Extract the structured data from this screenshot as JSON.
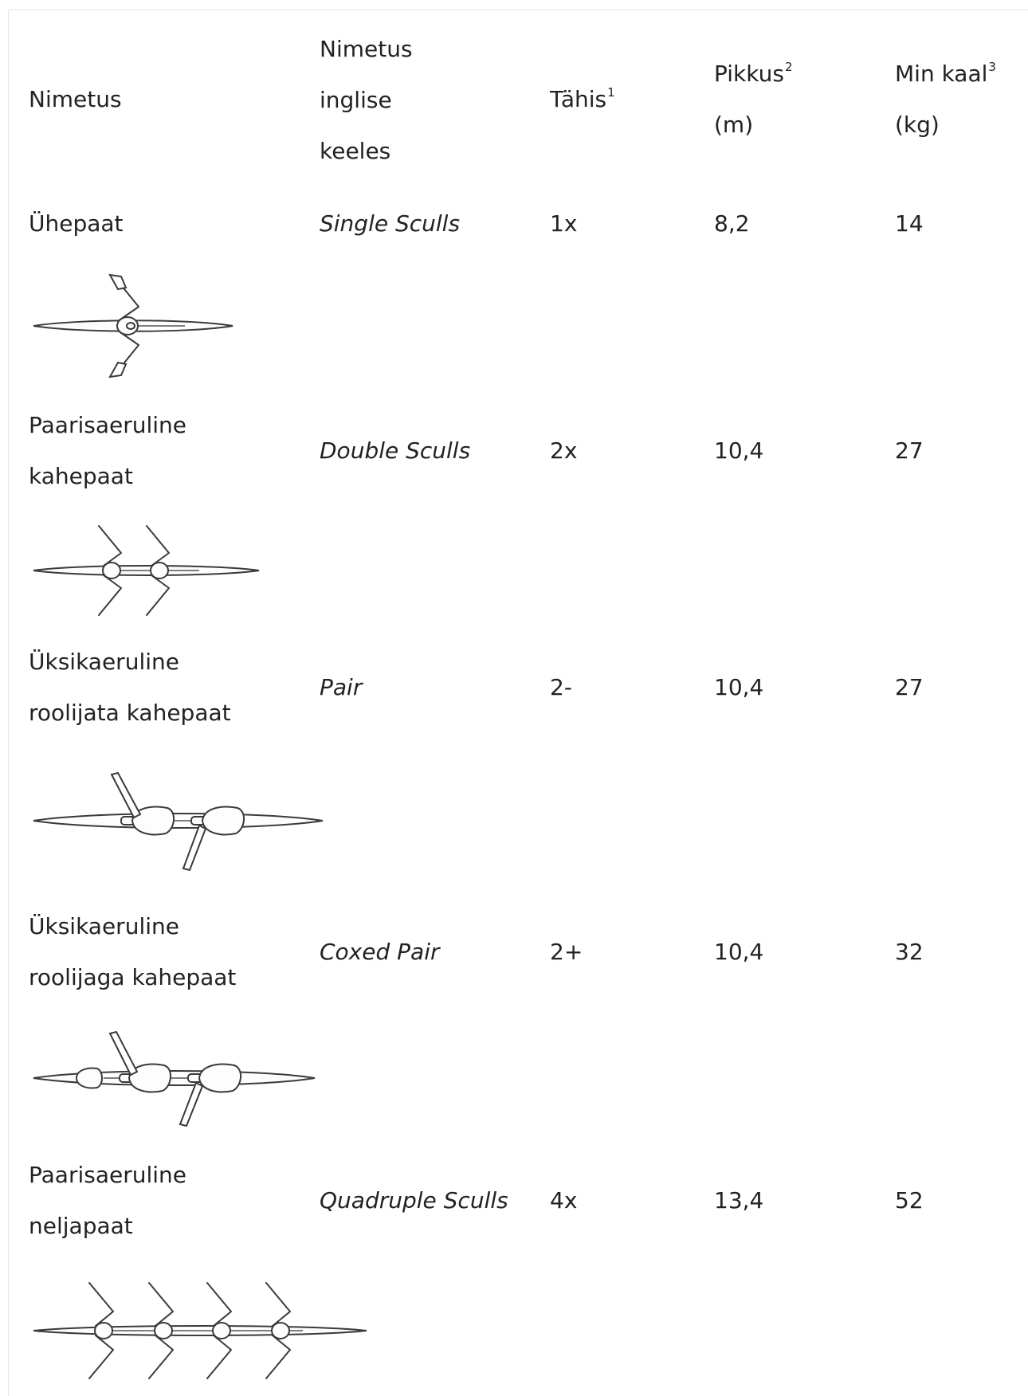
{
  "header": {
    "name": "Nimetus",
    "english_name": [
      "Nimetus",
      "inglise",
      "keeles"
    ],
    "code": "Tähis",
    "code_note": "1",
    "length": [
      "Pikkus",
      "(m)"
    ],
    "length_note": "2",
    "weight": [
      "Min kaal",
      "(kg)"
    ],
    "weight_note": "3"
  },
  "rows": [
    {
      "name": [
        "Ühepaat"
      ],
      "english": "Single Sculls",
      "code": "1x",
      "length": "8,2",
      "weight": "14",
      "icon": "single-sculls-boat-icon"
    },
    {
      "name": [
        "Paarisaeruline",
        "kahepaat"
      ],
      "english": "Double Sculls",
      "code": "2x",
      "length": "10,4",
      "weight": "27",
      "icon": "double-sculls-boat-icon"
    },
    {
      "name": [
        "Üksikaeruline",
        "roolijata kahepaat"
      ],
      "english": "Pair",
      "code": "2-",
      "length": "10,4",
      "weight": "27",
      "icon": "pair-boat-icon"
    },
    {
      "name": [
        "Üksikaeruline",
        "roolijaga kahepaat"
      ],
      "english": "Coxed Pair",
      "code": "2+",
      "length": "10,4",
      "weight": "32",
      "icon": "coxed-pair-boat-icon"
    },
    {
      "name": [
        "Paarisaeruline",
        "neljapaat"
      ],
      "english": "Quadruple Sculls",
      "code": "4x",
      "length": "13,4",
      "weight": "52",
      "icon": "quadruple-sculls-boat-icon"
    }
  ]
}
